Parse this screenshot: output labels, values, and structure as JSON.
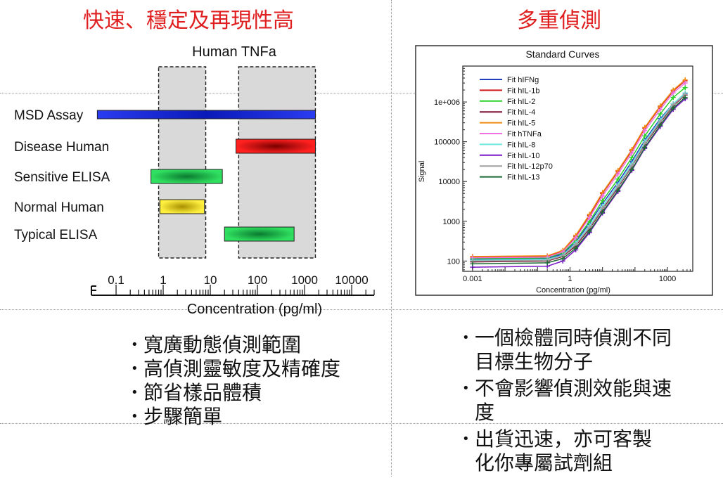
{
  "headings": {
    "left": "快速、穩定及再現性高",
    "right": "多重偵測"
  },
  "chart_data": [
    {
      "type": "bar",
      "title": "Human TNFa",
      "xlabel": "Concentration (pg/ml)",
      "x_scale": "log",
      "xlim": [
        0.03,
        30000
      ],
      "x_ticks": [
        0.1,
        1,
        10,
        100,
        1000,
        10000
      ],
      "x_tick_labels": [
        "0.1",
        "1",
        "10",
        "100",
        "1000",
        "10000"
      ],
      "highlight_ranges": [
        [
          0.8,
          8
        ],
        [
          40,
          1700
        ]
      ],
      "categories": [
        "MSD Assay",
        "Disease Human",
        "Sensitive ELISA",
        "Normal Human",
        "Typical ELISA"
      ],
      "ranges": [
        [
          0.04,
          1700
        ],
        [
          35,
          1700
        ],
        [
          0.55,
          18
        ],
        [
          0.85,
          7.5
        ],
        [
          20,
          600
        ]
      ],
      "colors": [
        "#1a2ee0",
        "#c81010",
        "#18a040",
        "#e6d20a",
        "#18a040"
      ]
    },
    {
      "type": "line",
      "title": "Standard Curves",
      "xlabel": "Concentration (pg/ml)",
      "ylabel": "Signal",
      "x_scale": "log",
      "y_scale": "log",
      "xlim": [
        0.0005,
        6000
      ],
      "ylim": [
        55,
        8000000
      ],
      "x_ticks": [
        0.001,
        1,
        1000
      ],
      "x_tick_labels": [
        "0.001",
        "1",
        "1000"
      ],
      "y_ticks": [
        100,
        1000,
        10000,
        100000,
        1000000
      ],
      "y_tick_labels": [
        "100",
        "1000",
        "10000",
        "100000",
        "1e+006"
      ],
      "legend_placement": "top-left",
      "x": [
        0.001,
        0.2,
        0.6,
        1.5,
        4,
        10,
        30,
        80,
        200,
        600,
        1500,
        3500
      ],
      "series": [
        {
          "name": "Fit hIFNg",
          "color": "#1f3fbf",
          "values": [
            110,
            115,
            150,
            300,
            900,
            2800,
            9500,
            32000,
            110000,
            380000,
            900000,
            1600000
          ]
        },
        {
          "name": "Fit hIL-1b",
          "color": "#d01818",
          "values": [
            125,
            130,
            180,
            420,
            1400,
            5000,
            18000,
            60000,
            220000,
            750000,
            1900000,
            3400000
          ]
        },
        {
          "name": "Fit hIL-2",
          "color": "#28d028",
          "values": [
            115,
            120,
            160,
            330,
            1000,
            3300,
            11500,
            40000,
            140000,
            500000,
            1300000,
            2300000
          ]
        },
        {
          "name": "Fit hIL-4",
          "color": "#7a1030",
          "values": [
            95,
            100,
            130,
            240,
            650,
            2000,
            7000,
            24000,
            85000,
            300000,
            800000,
            1500000
          ]
        },
        {
          "name": "Fit hIL-5",
          "color": "#f08a10",
          "values": [
            130,
            135,
            185,
            440,
            1500,
            5300,
            19000,
            64000,
            230000,
            800000,
            2000000,
            3600000
          ]
        },
        {
          "name": "Fit hTNFa",
          "color": "#f070e0",
          "values": [
            120,
            125,
            170,
            380,
            1250,
            4300,
            15500,
            52000,
            190000,
            650000,
            1700000,
            3000000
          ]
        },
        {
          "name": "Fit hIL-8",
          "color": "#70e8e0",
          "values": [
            105,
            110,
            140,
            280,
            780,
            2400,
            8300,
            28000,
            100000,
            350000,
            900000,
            1700000
          ]
        },
        {
          "name": "Fit hIL-10",
          "color": "#7a18c8",
          "values": [
            70,
            74,
            100,
            190,
            520,
            1600,
            5600,
            19000,
            68000,
            240000,
            650000,
            1200000
          ]
        },
        {
          "name": "Fit hIL-12p70",
          "color": "#a0a0a0",
          "values": [
            100,
            104,
            135,
            260,
            700,
            2150,
            7500,
            25000,
            90000,
            320000,
            850000,
            1550000
          ]
        },
        {
          "name": "Fit hIL-13",
          "color": "#1c6a34",
          "values": [
            85,
            90,
            115,
            210,
            560,
            1700,
            6000,
            20000,
            72000,
            260000,
            700000,
            1300000
          ]
        }
      ]
    }
  ],
  "bullets": {
    "left": [
      "寬廣動態偵測範圍",
      "高偵測靈敏度及精確度",
      "節省樣品體積",
      "步驟簡單"
    ],
    "right": [
      {
        "line1": "一個檢體同時偵測不同",
        "line2": "目標生物分子"
      },
      {
        "line1": "不會影響偵測效能與速",
        "line2": "度"
      },
      {
        "line1": " 出貨迅速，亦可客製",
        "line2": "化你專屬試劑組"
      }
    ]
  }
}
